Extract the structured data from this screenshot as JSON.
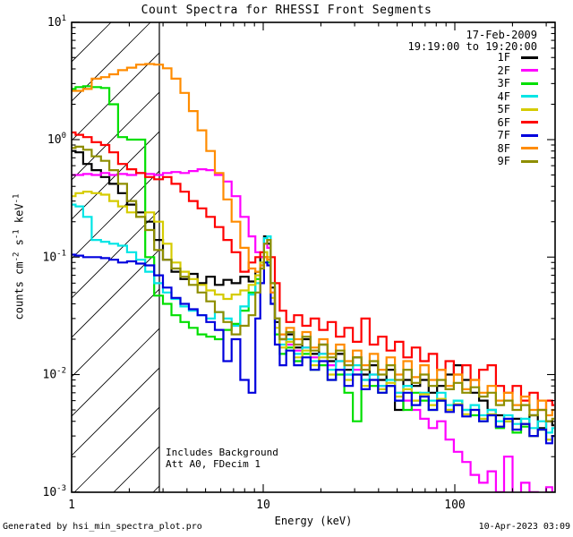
{
  "title": "Count Spectra for RHESSI Front Segments",
  "legend": {
    "date": "17-Feb-2009",
    "time_range": "19:19:00 to 19:20:00",
    "position": "top-right"
  },
  "annotations": {
    "line1": "Includes Background",
    "line2": "Att A0, FDecim 1"
  },
  "footer": {
    "left": "Generated by hsi_min_spectra_plot.pro",
    "right": "10-Apr-2023 03:09"
  },
  "chart_data": {
    "type": "line",
    "scale": "log-log",
    "title": "Count Spectra for RHESSI Front Segments",
    "xlabel": "Energy (keV)",
    "ylabel": "counts cm^-2 s^-1 keV^-1",
    "ylabel_parts": [
      [
        "t",
        "counts cm"
      ],
      [
        "s",
        "-2"
      ],
      [
        "t",
        " s"
      ],
      [
        "s",
        "-1"
      ],
      [
        "t",
        " keV"
      ],
      [
        "s",
        "-1"
      ]
    ],
    "xlim": [
      1,
      330
    ],
    "ylim": [
      0.001,
      10
    ],
    "grid": false,
    "x_ticks": [
      {
        "value": 1,
        "label": "1"
      },
      {
        "value": 10,
        "label": "10"
      },
      {
        "value": 100,
        "label": "100"
      }
    ],
    "y_ticks": [
      {
        "exp": 1,
        "base": "10",
        "sup": "1"
      },
      {
        "exp": 0,
        "base": "10",
        "sup": "0"
      },
      {
        "exp": -1,
        "base": "10",
        "sup": "-1"
      },
      {
        "exp": -2,
        "base": "10",
        "sup": "-2"
      },
      {
        "exp": -3,
        "base": "10",
        "sup": "-3"
      }
    ],
    "hatch_region": {
      "x_from": 1,
      "x_to": 2.87,
      "style": "diagonal-hatch"
    },
    "energy_keV": [
      1.0,
      1.1,
      1.2,
      1.35,
      1.5,
      1.65,
      1.85,
      2.05,
      2.3,
      2.55,
      2.85,
      3.15,
      3.5,
      3.9,
      4.3,
      4.8,
      5.3,
      5.9,
      6.5,
      7.2,
      8.0,
      8.8,
      9.4,
      9.9,
      10.3,
      10.7,
      11.2,
      11.8,
      12.6,
      13.8,
      15.2,
      16.8,
      18.6,
      20.6,
      22.8,
      25.2,
      27.9,
      30.9,
      34.2,
      37.8,
      41.8,
      46.3,
      51.2,
      56.7,
      62.7,
      69.4,
      76.8,
      85,
      94,
      104,
      115,
      127,
      141,
      156,
      172,
      190,
      211,
      233,
      258,
      285,
      315,
      330
    ],
    "series": [
      {
        "name": "1F",
        "color": "#000000",
        "values": [
          0.8,
          0.78,
          0.62,
          0.55,
          0.48,
          0.42,
          0.35,
          0.28,
          0.24,
          0.2,
          0.14,
          0.095,
          0.075,
          0.065,
          0.072,
          0.06,
          0.068,
          0.058,
          0.064,
          0.06,
          0.068,
          0.062,
          0.075,
          0.1,
          0.15,
          0.13,
          0.055,
          0.028,
          0.02,
          0.022,
          0.017,
          0.02,
          0.015,
          0.018,
          0.013,
          0.015,
          0.011,
          0.014,
          0.01,
          0.012,
          0.009,
          0.011,
          0.005,
          0.009,
          0.008,
          0.009,
          0.007,
          0.008,
          0.01,
          0.012,
          0.009,
          0.007,
          0.006,
          0.005,
          0.0045,
          0.004,
          0.0042,
          0.0038,
          0.0045,
          0.0035,
          0.004,
          0.0037
        ]
      },
      {
        "name": "2F",
        "color": "#FF00FF",
        "values": [
          0.5,
          0.5,
          0.51,
          0.5,
          0.52,
          0.5,
          0.51,
          0.5,
          0.52,
          0.51,
          0.5,
          0.52,
          0.53,
          0.52,
          0.54,
          0.56,
          0.55,
          0.5,
          0.44,
          0.33,
          0.22,
          0.15,
          0.11,
          0.1,
          0.13,
          0.12,
          0.05,
          0.03,
          0.022,
          0.018,
          0.016,
          0.017,
          0.014,
          0.015,
          0.012,
          0.013,
          0.01,
          0.011,
          0.009,
          0.01,
          0.008,
          0.008,
          0.007,
          0.006,
          0.005,
          0.0042,
          0.0035,
          0.004,
          0.0028,
          0.0022,
          0.0018,
          0.0014,
          0.0012,
          0.0015,
          0.001,
          0.002,
          0.0009,
          0.0012,
          0.001,
          0.0009,
          0.0011,
          0.0009
        ]
      },
      {
        "name": "3F",
        "color": "#00DF00",
        "values": [
          2.7,
          2.8,
          2.85,
          2.8,
          2.75,
          2.0,
          1.05,
          1.0,
          1.0,
          0.1,
          0.047,
          0.04,
          0.032,
          0.028,
          0.025,
          0.022,
          0.021,
          0.02,
          0.024,
          0.027,
          0.035,
          0.05,
          0.065,
          0.085,
          0.11,
          0.09,
          0.04,
          0.022,
          0.015,
          0.017,
          0.013,
          0.015,
          0.011,
          0.012,
          0.009,
          0.01,
          0.007,
          0.004,
          0.009,
          0.008,
          0.007,
          0.008,
          0.006,
          0.005,
          0.007,
          0.006,
          0.005,
          0.006,
          0.005,
          0.006,
          0.005,
          0.0045,
          0.004,
          0.0045,
          0.0035,
          0.004,
          0.0032,
          0.0036,
          0.003,
          0.0034,
          0.0028,
          0.003
        ]
      },
      {
        "name": "4F",
        "color": "#00E5E5",
        "values": [
          0.28,
          0.27,
          0.22,
          0.14,
          0.135,
          0.13,
          0.125,
          0.11,
          0.095,
          0.075,
          0.06,
          0.05,
          0.044,
          0.038,
          0.035,
          0.032,
          0.03,
          0.034,
          0.03,
          0.026,
          0.038,
          0.048,
          0.06,
          0.09,
          0.145,
          0.15,
          0.06,
          0.03,
          0.018,
          0.02,
          0.015,
          0.017,
          0.013,
          0.015,
          0.011,
          0.013,
          0.01,
          0.012,
          0.009,
          0.01,
          0.008,
          0.009,
          0.007,
          0.008,
          0.006,
          0.007,
          0.006,
          0.007,
          0.0055,
          0.006,
          0.005,
          0.0055,
          0.0045,
          0.005,
          0.004,
          0.0045,
          0.0038,
          0.0042,
          0.0035,
          0.004,
          0.0032,
          0.0035
        ]
      },
      {
        "name": "5F",
        "color": "#D5CB00",
        "values": [
          0.33,
          0.35,
          0.36,
          0.35,
          0.34,
          0.3,
          0.27,
          0.24,
          0.22,
          0.24,
          0.2,
          0.13,
          0.09,
          0.075,
          0.065,
          0.058,
          0.052,
          0.048,
          0.044,
          0.048,
          0.052,
          0.058,
          0.07,
          0.09,
          0.11,
          0.1,
          0.045,
          0.025,
          0.017,
          0.019,
          0.014,
          0.016,
          0.012,
          0.014,
          0.01,
          0.011,
          0.009,
          0.01,
          0.008,
          0.009,
          0.0075,
          0.0085,
          0.0065,
          0.0075,
          0.006,
          0.0068,
          0.0055,
          0.0062,
          0.005,
          0.0056,
          0.0046,
          0.005,
          0.0042,
          0.0046,
          0.0036,
          0.004,
          0.0034,
          0.0038,
          0.003,
          0.0034,
          0.0028,
          0.003
        ]
      },
      {
        "name": "6F",
        "color": "#FF0000",
        "values": [
          1.15,
          1.1,
          1.05,
          0.95,
          0.9,
          0.78,
          0.62,
          0.56,
          0.52,
          0.48,
          0.46,
          0.48,
          0.42,
          0.36,
          0.3,
          0.26,
          0.22,
          0.18,
          0.14,
          0.11,
          0.075,
          0.09,
          0.1,
          0.11,
          0.1,
          0.095,
          0.1,
          0.06,
          0.035,
          0.028,
          0.032,
          0.026,
          0.03,
          0.024,
          0.028,
          0.021,
          0.025,
          0.019,
          0.03,
          0.018,
          0.021,
          0.016,
          0.019,
          0.014,
          0.017,
          0.013,
          0.015,
          0.011,
          0.013,
          0.01,
          0.012,
          0.009,
          0.011,
          0.012,
          0.008,
          0.007,
          0.008,
          0.006,
          0.007,
          0.005,
          0.006,
          0.0055
        ]
      },
      {
        "name": "7F",
        "color": "#0000DD",
        "values": [
          0.105,
          0.103,
          0.1,
          0.1,
          0.098,
          0.095,
          0.09,
          0.092,
          0.088,
          0.085,
          0.07,
          0.055,
          0.045,
          0.04,
          0.036,
          0.032,
          0.028,
          0.024,
          0.013,
          0.02,
          0.009,
          0.007,
          0.03,
          0.06,
          0.09,
          0.085,
          0.04,
          0.018,
          0.012,
          0.016,
          0.012,
          0.014,
          0.011,
          0.013,
          0.009,
          0.011,
          0.008,
          0.01,
          0.0075,
          0.009,
          0.007,
          0.008,
          0.006,
          0.007,
          0.0055,
          0.0065,
          0.005,
          0.006,
          0.0048,
          0.0055,
          0.0044,
          0.005,
          0.004,
          0.0045,
          0.0036,
          0.0042,
          0.0034,
          0.0038,
          0.003,
          0.0034,
          0.0026,
          0.003
        ]
      },
      {
        "name": "8F",
        "color": "#FF8C00",
        "values": [
          2.6,
          2.6,
          2.7,
          3.3,
          3.4,
          3.6,
          3.9,
          4.1,
          4.35,
          4.4,
          4.35,
          4.05,
          3.3,
          2.5,
          1.75,
          1.2,
          0.8,
          0.52,
          0.31,
          0.2,
          0.12,
          0.08,
          0.075,
          0.085,
          0.1,
          0.095,
          0.05,
          0.03,
          0.022,
          0.025,
          0.02,
          0.023,
          0.017,
          0.02,
          0.015,
          0.018,
          0.013,
          0.016,
          0.012,
          0.015,
          0.011,
          0.014,
          0.01,
          0.013,
          0.0095,
          0.012,
          0.009,
          0.011,
          0.008,
          0.01,
          0.0075,
          0.009,
          0.007,
          0.008,
          0.006,
          0.007,
          0.0055,
          0.0065,
          0.005,
          0.006,
          0.0045,
          0.005
        ]
      },
      {
        "name": "9F",
        "color": "#8E8E00",
        "values": [
          0.85,
          0.87,
          0.82,
          0.72,
          0.66,
          0.55,
          0.42,
          0.3,
          0.22,
          0.17,
          0.115,
          0.095,
          0.08,
          0.068,
          0.058,
          0.05,
          0.042,
          0.034,
          0.028,
          0.022,
          0.026,
          0.032,
          0.05,
          0.08,
          0.13,
          0.14,
          0.06,
          0.03,
          0.02,
          0.023,
          0.018,
          0.021,
          0.016,
          0.018,
          0.014,
          0.016,
          0.012,
          0.014,
          0.011,
          0.013,
          0.01,
          0.012,
          0.009,
          0.011,
          0.0085,
          0.01,
          0.008,
          0.009,
          0.0075,
          0.0085,
          0.007,
          0.0078,
          0.0065,
          0.007,
          0.0055,
          0.006,
          0.005,
          0.0055,
          0.0045,
          0.005,
          0.004,
          0.0042
        ]
      }
    ]
  }
}
